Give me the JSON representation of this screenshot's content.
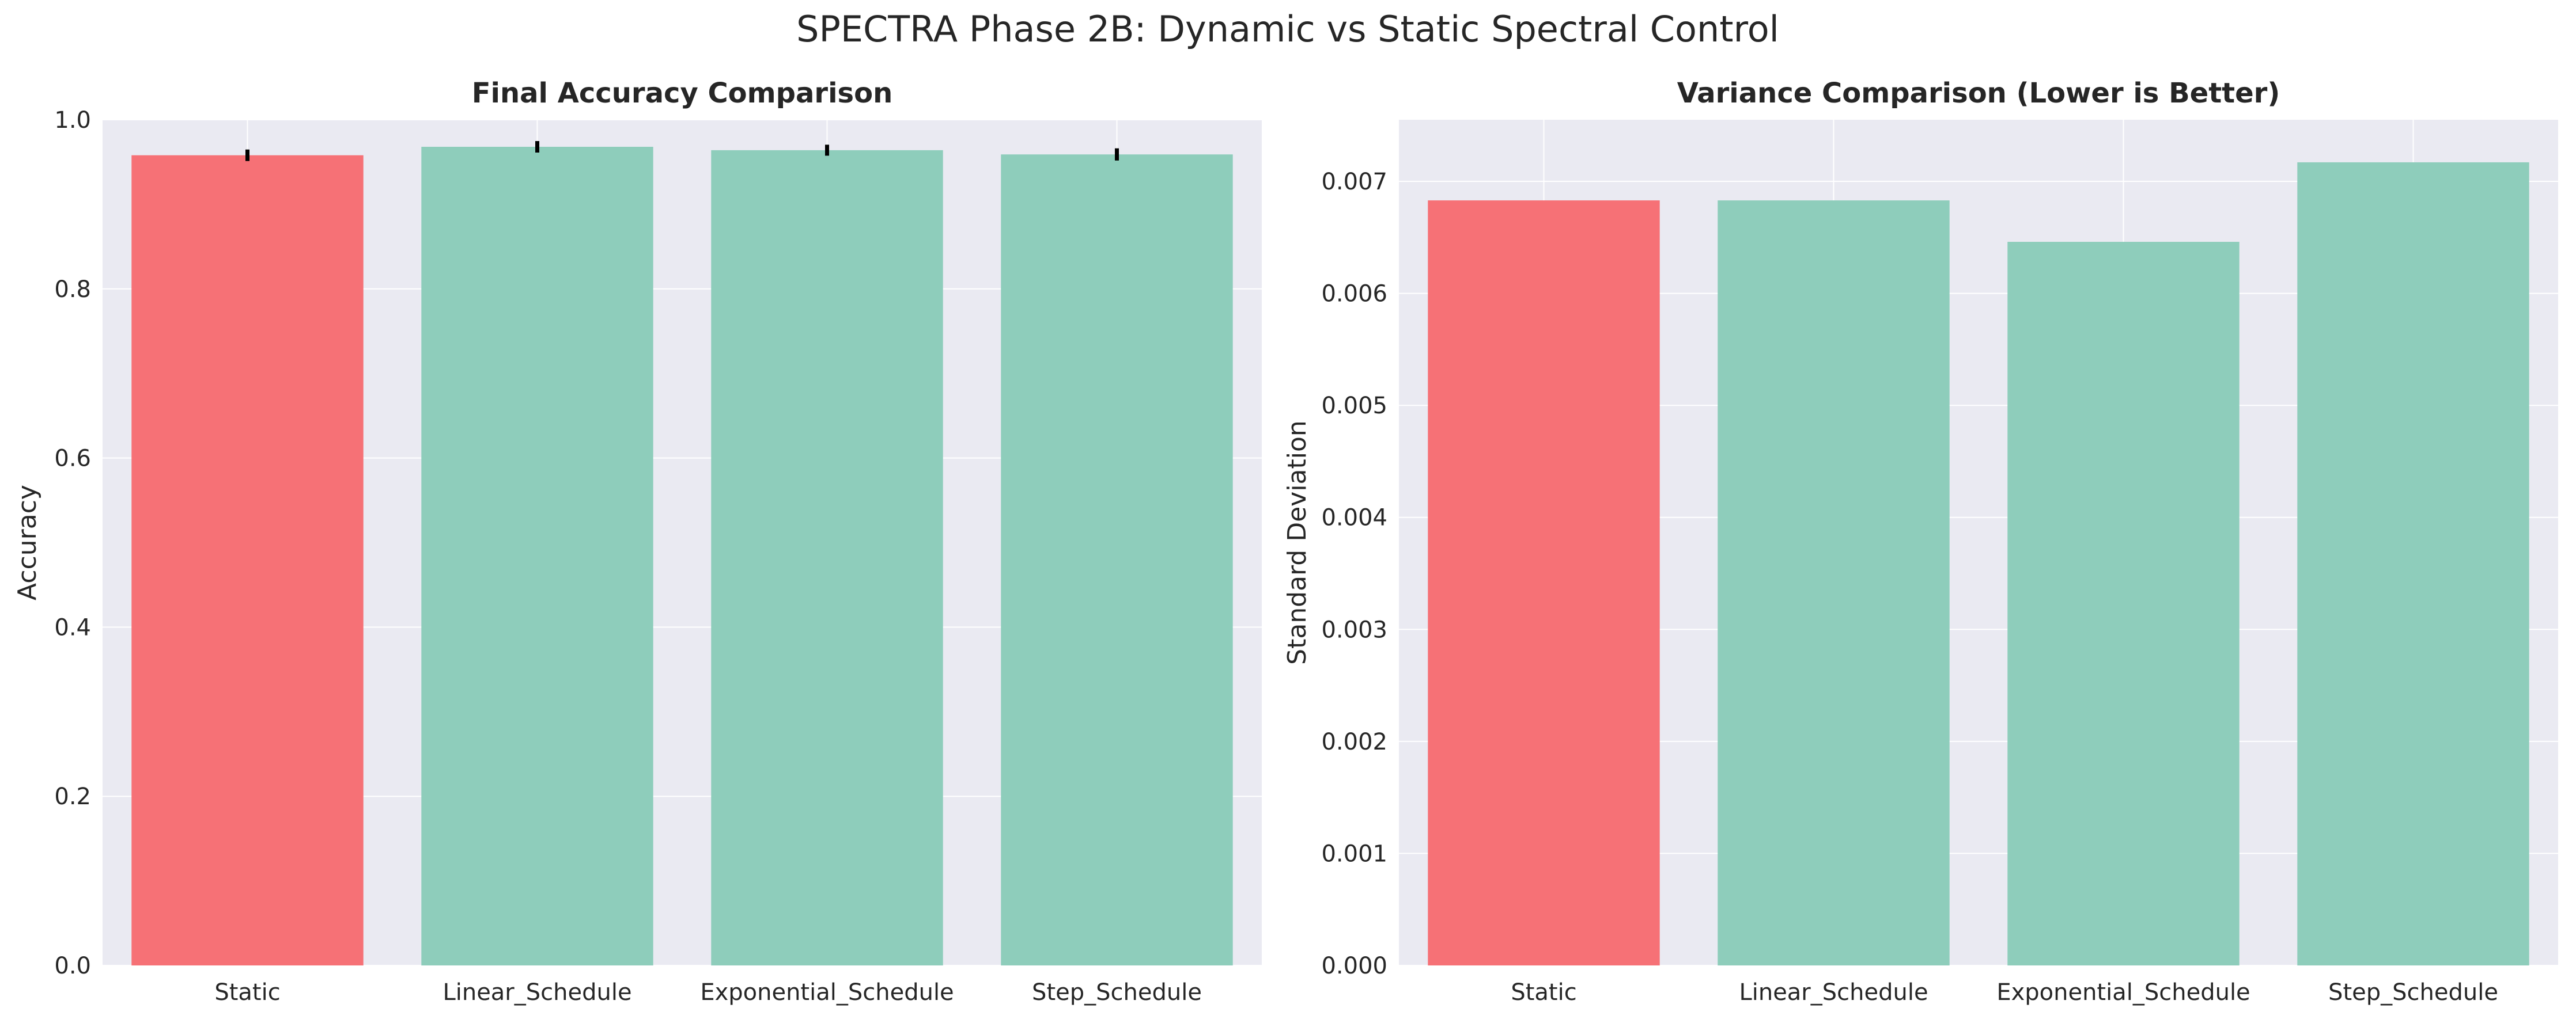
{
  "figure": {
    "suptitle": "SPECTRA Phase 2B: Dynamic vs Static Spectral Control"
  },
  "colors": {
    "static": "#f67176",
    "dynamic": "#8ecdbb",
    "plot_bg": "#eaeaf2",
    "grid": "#ffffff",
    "error_bar": "#000000"
  },
  "chart_data": [
    {
      "type": "bar",
      "title": "Final Accuracy Comparison",
      "xlabel": "",
      "ylabel": "Accuracy",
      "categories": [
        "Static",
        "Linear_Schedule",
        "Exponential_Schedule",
        "Step_Schedule"
      ],
      "values": [
        0.958,
        0.968,
        0.964,
        0.959
      ],
      "errors": [
        0.0068,
        0.0068,
        0.0065,
        0.0072
      ],
      "bar_colors": [
        "#f67176",
        "#8ecdbb",
        "#8ecdbb",
        "#8ecdbb"
      ],
      "ylim": [
        0.0,
        1.0
      ],
      "yticks": [
        0.0,
        0.2,
        0.4,
        0.6,
        0.8,
        1.0
      ],
      "ytick_labels": [
        "0.0",
        "0.2",
        "0.4",
        "0.6",
        "0.8",
        "1.0"
      ],
      "grid": true,
      "legend": "none"
    },
    {
      "type": "bar",
      "title": "Variance Comparison (Lower is Better)",
      "xlabel": "",
      "ylabel": "Standard Deviation",
      "categories": [
        "Static",
        "Linear_Schedule",
        "Exponential_Schedule",
        "Step_Schedule"
      ],
      "values": [
        0.00683,
        0.00683,
        0.00646,
        0.00717
      ],
      "bar_colors": [
        "#f67176",
        "#8ecdbb",
        "#8ecdbb",
        "#8ecdbb"
      ],
      "ylim": [
        0.0,
        0.00755
      ],
      "yticks": [
        0.0,
        0.001,
        0.002,
        0.003,
        0.004,
        0.005,
        0.006,
        0.007
      ],
      "ytick_labels": [
        "0.000",
        "0.001",
        "0.002",
        "0.003",
        "0.004",
        "0.005",
        "0.006",
        "0.007"
      ],
      "grid": true,
      "legend": "none"
    }
  ]
}
